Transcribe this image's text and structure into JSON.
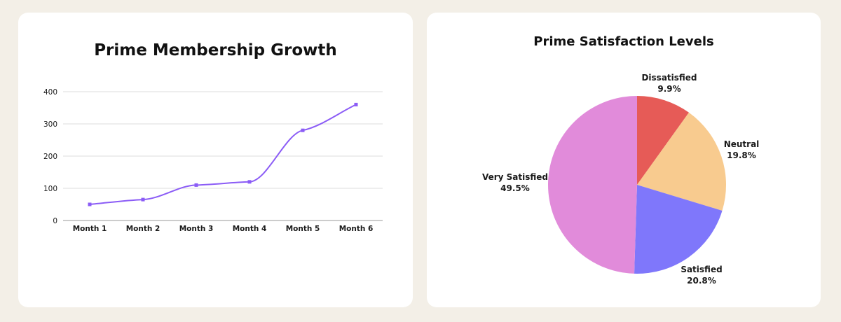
{
  "line_chart": {
    "chart_data": {
      "type": "line",
      "title": "Prime Membership Growth",
      "categories": [
        "Month 1",
        "Month 2",
        "Month 3",
        "Month 4",
        "Month 5",
        "Month 6"
      ],
      "series": [
        {
          "values": [
            50,
            65,
            110,
            120,
            280,
            360
          ],
          "color": "#8b5cf6"
        }
      ],
      "yticks": [
        0,
        100,
        200,
        300,
        400
      ],
      "ylim": [
        0,
        400
      ],
      "grid": true,
      "smooth": true
    }
  },
  "pie_chart": {
    "chart_data": {
      "type": "pie",
      "title": "Prime Satisfaction Levels",
      "slices": [
        {
          "label": "Dissatisfied",
          "value": 9.9,
          "display": "9.9%",
          "color": "#e65b57"
        },
        {
          "label": "Neutral",
          "value": 19.8,
          "display": "19.8%",
          "color": "#f8cb8f"
        },
        {
          "label": "Satisfied",
          "value": 20.8,
          "display": "20.8%",
          "color": "#7f77fb"
        },
        {
          "label": "Very Satisfied",
          "value": 49.5,
          "display": "49.5%",
          "color": "#e18bda"
        }
      ],
      "start": "12 o'clock",
      "direction": "clockwise"
    }
  }
}
